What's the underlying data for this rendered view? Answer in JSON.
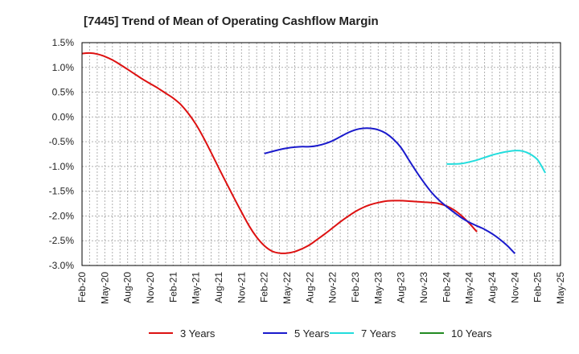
{
  "chart_data": {
    "type": "line",
    "title": "[7445]  Trend of Mean of Operating Cashflow Margin",
    "xlabel": "",
    "ylabel": "",
    "ylim": [
      -3.0,
      1.5
    ],
    "y_ticks": [
      "1.5%",
      "1.0%",
      "0.5%",
      "0.0%",
      "-0.5%",
      "-1.0%",
      "-1.5%",
      "-2.0%",
      "-2.5%",
      "-3.0%"
    ],
    "x_ticks": [
      "Feb-20",
      "May-20",
      "Aug-20",
      "Nov-20",
      "Feb-21",
      "May-21",
      "Aug-21",
      "Nov-21",
      "Feb-22",
      "May-22",
      "Aug-22",
      "Nov-22",
      "Feb-23",
      "May-23",
      "Aug-23",
      "Nov-23",
      "Feb-24",
      "May-24",
      "Aug-24",
      "Nov-24",
      "Feb-25",
      "May-25"
    ],
    "grid": true,
    "legend_position": "bottom",
    "series": [
      {
        "name": "3 Years",
        "color": "#dd1111",
        "points": [
          [
            "Feb-20",
            1.28
          ],
          [
            "Mar-20",
            1.29
          ],
          [
            "Apr-20",
            1.27
          ],
          [
            "May-20",
            1.22
          ],
          [
            "Jun-20",
            1.15
          ],
          [
            "Jul-20",
            1.06
          ],
          [
            "Aug-20",
            0.96
          ],
          [
            "Sep-20",
            0.86
          ],
          [
            "Oct-20",
            0.76
          ],
          [
            "Nov-20",
            0.67
          ],
          [
            "Dec-20",
            0.58
          ],
          [
            "Jan-21",
            0.48
          ],
          [
            "Feb-21",
            0.38
          ],
          [
            "Mar-21",
            0.25
          ],
          [
            "Apr-21",
            0.07
          ],
          [
            "May-21",
            -0.15
          ],
          [
            "Jun-21",
            -0.42
          ],
          [
            "Jul-21",
            -0.72
          ],
          [
            "Aug-21",
            -1.03
          ],
          [
            "Sep-21",
            -1.33
          ],
          [
            "Oct-21",
            -1.63
          ],
          [
            "Nov-21",
            -1.92
          ],
          [
            "Dec-21",
            -2.2
          ],
          [
            "Jan-22",
            -2.43
          ],
          [
            "Feb-22",
            -2.6
          ],
          [
            "Mar-22",
            -2.71
          ],
          [
            "Apr-22",
            -2.75
          ],
          [
            "May-22",
            -2.75
          ],
          [
            "Jun-22",
            -2.72
          ],
          [
            "Jul-22",
            -2.66
          ],
          [
            "Aug-22",
            -2.58
          ],
          [
            "Sep-22",
            -2.47
          ],
          [
            "Oct-22",
            -2.36
          ],
          [
            "Nov-22",
            -2.24
          ],
          [
            "Dec-22",
            -2.12
          ],
          [
            "Jan-23",
            -2.01
          ],
          [
            "Feb-23",
            -1.91
          ],
          [
            "Mar-23",
            -1.83
          ],
          [
            "Apr-23",
            -1.77
          ],
          [
            "May-23",
            -1.73
          ],
          [
            "Jun-23",
            -1.7
          ],
          [
            "Jul-23",
            -1.69
          ],
          [
            "Aug-23",
            -1.69
          ],
          [
            "Sep-23",
            -1.7
          ],
          [
            "Oct-23",
            -1.71
          ],
          [
            "Nov-23",
            -1.72
          ],
          [
            "Dec-23",
            -1.73
          ],
          [
            "Jan-24",
            -1.75
          ],
          [
            "Feb-24",
            -1.8
          ],
          [
            "Mar-24",
            -1.88
          ],
          [
            "Apr-24",
            -2.0
          ],
          [
            "May-24",
            -2.15
          ],
          [
            "Jun-24",
            -2.32
          ]
        ]
      },
      {
        "name": "5 Years",
        "color": "#1a1acc",
        "points": [
          [
            "Feb-22",
            -0.74
          ],
          [
            "Mar-22",
            -0.7
          ],
          [
            "Apr-22",
            -0.66
          ],
          [
            "May-22",
            -0.63
          ],
          [
            "Jun-22",
            -0.61
          ],
          [
            "Jul-22",
            -0.6
          ],
          [
            "Aug-22",
            -0.6
          ],
          [
            "Sep-22",
            -0.58
          ],
          [
            "Oct-22",
            -0.54
          ],
          [
            "Nov-22",
            -0.48
          ],
          [
            "Dec-22",
            -0.4
          ],
          [
            "Jan-23",
            -0.32
          ],
          [
            "Feb-23",
            -0.26
          ],
          [
            "Mar-23",
            -0.23
          ],
          [
            "Apr-23",
            -0.23
          ],
          [
            "May-23",
            -0.26
          ],
          [
            "Jun-23",
            -0.33
          ],
          [
            "Jul-23",
            -0.45
          ],
          [
            "Aug-23",
            -0.62
          ],
          [
            "Sep-23",
            -0.86
          ],
          [
            "Oct-23",
            -1.1
          ],
          [
            "Nov-23",
            -1.32
          ],
          [
            "Dec-23",
            -1.52
          ],
          [
            "Jan-24",
            -1.68
          ],
          [
            "Feb-24",
            -1.81
          ],
          [
            "Mar-24",
            -1.93
          ],
          [
            "Apr-24",
            -2.04
          ],
          [
            "May-24",
            -2.13
          ],
          [
            "Jun-24",
            -2.2
          ],
          [
            "Jul-24",
            -2.27
          ],
          [
            "Aug-24",
            -2.36
          ],
          [
            "Sep-24",
            -2.47
          ],
          [
            "Oct-24",
            -2.6
          ],
          [
            "Nov-24",
            -2.76
          ]
        ]
      },
      {
        "name": "7 Years",
        "color": "#22dddd",
        "points": [
          [
            "Feb-24",
            -0.95
          ],
          [
            "Mar-24",
            -0.95
          ],
          [
            "Apr-24",
            -0.94
          ],
          [
            "May-24",
            -0.91
          ],
          [
            "Jun-24",
            -0.87
          ],
          [
            "Jul-24",
            -0.82
          ],
          [
            "Aug-24",
            -0.77
          ],
          [
            "Sep-24",
            -0.73
          ],
          [
            "Oct-24",
            -0.7
          ],
          [
            "Nov-24",
            -0.68
          ],
          [
            "Dec-24",
            -0.69
          ],
          [
            "Jan-25",
            -0.75
          ],
          [
            "Feb-25",
            -0.87
          ],
          [
            "Mar-25",
            -1.13
          ]
        ]
      },
      {
        "name": "10 Years",
        "color": "#228b22",
        "points": []
      }
    ]
  }
}
